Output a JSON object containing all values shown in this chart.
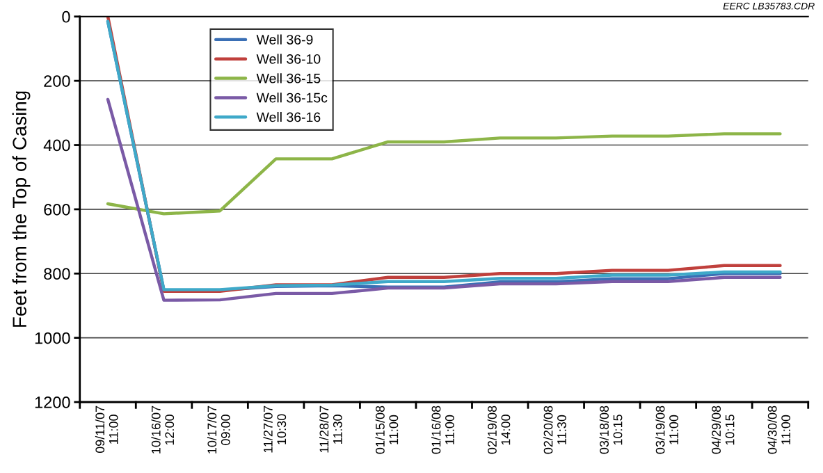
{
  "chart_data": {
    "type": "line",
    "ylabel": "Feet from the Top of Casing",
    "annotations": [
      "EERC LB35783.CDR"
    ],
    "categories": [
      "09/11/07\n11:00",
      "10/16/07\n12:00",
      "10/17/07\n09:00",
      "11/27/07\n10:30",
      "11/28/07\n11:30",
      "01/15/08\n11:00",
      "01/16/08\n11:00",
      "02/19/08\n14:00",
      "02/20/08\n11:30",
      "03/18/08\n10:15",
      "03/19/08\n11:00",
      "04/29/08\n10:15",
      "04/30/08\n11:00"
    ],
    "series": [
      {
        "name": "Well 36-9",
        "color": "#3a6fb5",
        "values": [
          15,
          852,
          852,
          840,
          838,
          842,
          842,
          826,
          826,
          816,
          816,
          800,
          800
        ]
      },
      {
        "name": "Well 36-10",
        "color": "#c0403c",
        "values": [
          0,
          855,
          855,
          835,
          835,
          812,
          812,
          800,
          800,
          790,
          790,
          775,
          775
        ]
      },
      {
        "name": "Well 36-15",
        "color": "#8db548",
        "values": [
          583,
          614,
          605,
          443,
          443,
          390,
          390,
          378,
          378,
          372,
          372,
          365,
          365
        ]
      },
      {
        "name": "Well 36-15c",
        "color": "#7a5aa6",
        "values": [
          258,
          883,
          882,
          862,
          862,
          845,
          845,
          832,
          832,
          825,
          825,
          812,
          812
        ]
      },
      {
        "name": "Well 36-16",
        "color": "#3fa9c9",
        "values": [
          15,
          850,
          850,
          838,
          836,
          825,
          825,
          815,
          815,
          805,
          805,
          795,
          795
        ]
      }
    ],
    "ylim": [
      1200,
      0
    ],
    "yticks": [
      0,
      200,
      400,
      600,
      800,
      1000,
      1200
    ],
    "grid": "y",
    "legend": "top left",
    "line_style": "solid",
    "marker": "none"
  }
}
